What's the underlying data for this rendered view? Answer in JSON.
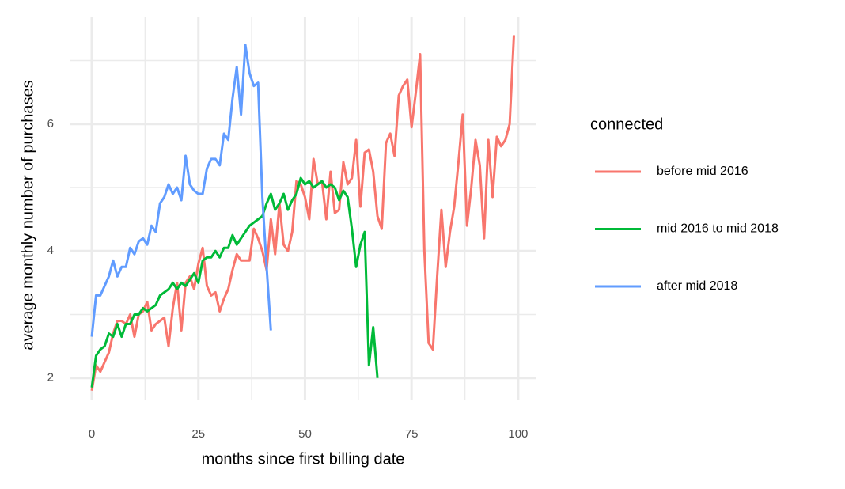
{
  "chart_data": {
    "type": "line",
    "x_label": "months since first billing date",
    "y_label": "average monthly number of purchases",
    "legend_title": "connected",
    "legend_position": "right",
    "grid": true,
    "minor_grid": true,
    "xlim": [
      -5.2,
      104.1
    ],
    "ylim": [
      1.66,
      7.68
    ],
    "xticks": [
      0,
      25,
      50,
      75,
      100
    ],
    "yticks": [
      2,
      4,
      6
    ],
    "series": [
      {
        "name": "before mid 2016",
        "color": "#F8766D",
        "x": [
          0,
          1,
          2,
          3,
          4,
          5,
          6,
          7,
          8,
          9,
          10,
          11,
          12,
          13,
          14,
          15,
          16,
          17,
          18,
          19,
          20,
          21,
          22,
          23,
          24,
          25,
          26,
          27,
          28,
          29,
          30,
          31,
          32,
          33,
          34,
          35,
          36,
          37,
          38,
          39,
          40,
          41,
          42,
          43,
          44,
          45,
          46,
          47,
          48,
          49,
          50,
          51,
          52,
          53,
          54,
          55,
          56,
          57,
          58,
          59,
          60,
          61,
          62,
          63,
          64,
          65,
          66,
          67,
          68,
          69,
          70,
          71,
          72,
          73,
          74,
          75,
          76,
          77,
          78,
          79,
          80,
          81,
          82,
          83,
          84,
          85,
          86,
          87,
          88,
          89,
          90,
          91,
          92,
          93,
          94,
          95,
          96,
          97,
          98,
          99
        ],
        "values": [
          1.8,
          2.2,
          2.1,
          2.25,
          2.4,
          2.7,
          2.9,
          2.9,
          2.85,
          3.0,
          2.65,
          3.0,
          3.05,
          3.2,
          2.75,
          2.85,
          2.9,
          2.95,
          2.5,
          3.1,
          3.5,
          2.75,
          3.5,
          3.6,
          3.4,
          3.8,
          4.05,
          3.45,
          3.3,
          3.35,
          3.05,
          3.25,
          3.4,
          3.7,
          3.95,
          3.85,
          3.85,
          3.85,
          4.35,
          4.2,
          4.0,
          3.7,
          4.5,
          3.95,
          4.75,
          4.1,
          4.0,
          4.3,
          5.1,
          5.05,
          4.85,
          4.5,
          5.45,
          5.05,
          5.1,
          4.5,
          5.25,
          4.6,
          4.65,
          5.4,
          5.05,
          5.15,
          5.75,
          4.7,
          5.55,
          5.6,
          5.25,
          4.55,
          4.35,
          5.7,
          5.85,
          5.5,
          6.45,
          6.6,
          6.7,
          5.95,
          6.5,
          7.1,
          4.0,
          2.55,
          2.45,
          3.6,
          4.65,
          3.75,
          4.3,
          4.7,
          5.4,
          6.15,
          4.4,
          5.0,
          5.75,
          5.35,
          4.2,
          5.75,
          4.85,
          5.8,
          5.65,
          5.75,
          6.0,
          7.4
        ]
      },
      {
        "name": "mid 2016 to mid 2018",
        "color": "#00BA38",
        "x": [
          0,
          1,
          2,
          3,
          4,
          5,
          6,
          7,
          8,
          9,
          10,
          11,
          12,
          13,
          14,
          15,
          16,
          17,
          18,
          19,
          20,
          21,
          22,
          23,
          24,
          25,
          26,
          27,
          28,
          29,
          30,
          31,
          32,
          33,
          34,
          35,
          36,
          37,
          38,
          39,
          40,
          41,
          42,
          43,
          44,
          45,
          46,
          47,
          48,
          49,
          50,
          51,
          52,
          53,
          54,
          55,
          56,
          57,
          58,
          59,
          60,
          61,
          62,
          63,
          64,
          65,
          66,
          67
        ],
        "values": [
          1.85,
          2.35,
          2.45,
          2.5,
          2.7,
          2.65,
          2.85,
          2.65,
          2.85,
          2.85,
          3.0,
          3.0,
          3.1,
          3.05,
          3.1,
          3.15,
          3.3,
          3.35,
          3.4,
          3.5,
          3.4,
          3.5,
          3.45,
          3.55,
          3.65,
          3.5,
          3.85,
          3.9,
          3.9,
          4.0,
          3.9,
          4.05,
          4.05,
          4.25,
          4.1,
          4.2,
          4.3,
          4.4,
          4.45,
          4.5,
          4.55,
          4.75,
          4.9,
          4.65,
          4.75,
          4.9,
          4.65,
          4.8,
          4.9,
          5.15,
          5.05,
          5.1,
          5.0,
          5.05,
          5.1,
          5.0,
          5.05,
          5.0,
          4.8,
          4.95,
          4.85,
          4.35,
          3.75,
          4.1,
          4.3,
          2.2,
          2.8,
          2.0
        ]
      },
      {
        "name": "after mid 2018",
        "color": "#619CFF",
        "x": [
          0,
          1,
          2,
          3,
          4,
          5,
          6,
          7,
          8,
          9,
          10,
          11,
          12,
          13,
          14,
          15,
          16,
          17,
          18,
          19,
          20,
          21,
          22,
          23,
          24,
          25,
          26,
          27,
          28,
          29,
          30,
          31,
          32,
          33,
          34,
          35,
          36,
          37,
          38,
          39,
          40,
          41,
          42
        ],
        "values": [
          2.65,
          3.3,
          3.3,
          3.45,
          3.6,
          3.85,
          3.6,
          3.75,
          3.75,
          4.05,
          3.95,
          4.15,
          4.2,
          4.1,
          4.4,
          4.3,
          4.75,
          4.85,
          5.05,
          4.9,
          5.0,
          4.8,
          5.5,
          5.05,
          4.95,
          4.9,
          4.9,
          5.3,
          5.45,
          5.45,
          5.35,
          5.85,
          5.75,
          6.4,
          6.9,
          6.15,
          7.25,
          6.8,
          6.6,
          6.65,
          4.85,
          3.75,
          2.75
        ]
      }
    ]
  }
}
